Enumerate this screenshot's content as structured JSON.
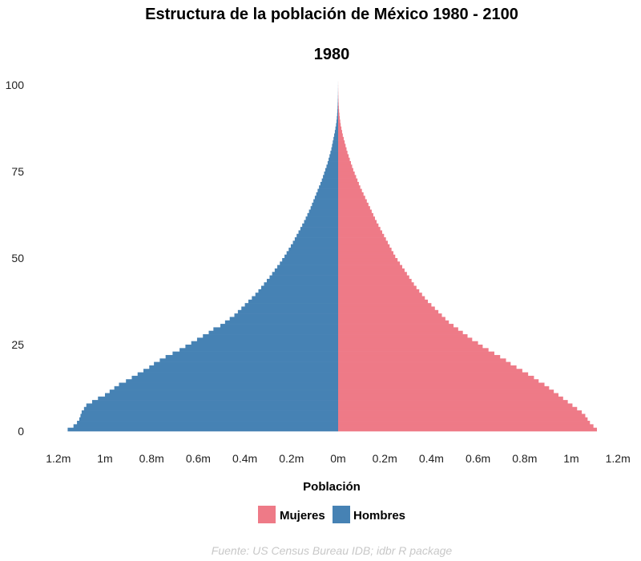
{
  "chart_data": {
    "type": "bar",
    "orientation": "horizontal-pyramid",
    "title": "Estructura de la población de México 1980 - 2100",
    "subtitle": "1980",
    "xlabel": "Población",
    "ylabel": "",
    "caption": "Fuente: US Census Bureau IDB; idbr R package",
    "xlim": [
      -1200000,
      1200000
    ],
    "ylim": [
      0,
      100
    ],
    "x_ticks": [
      -1200000,
      -1000000,
      -800000,
      -600000,
      -400000,
      -200000,
      0,
      200000,
      400000,
      600000,
      800000,
      1000000,
      1200000
    ],
    "x_tick_labels": [
      "1.2m",
      "1m",
      "0.8m",
      "0.6m",
      "0.4m",
      "0.2m",
      "0m",
      "0.2m",
      "0.4m",
      "0.6m",
      "0.8m",
      "1m",
      "1.2m"
    ],
    "y_ticks": [
      0,
      25,
      50,
      75,
      100
    ],
    "y_tick_labels": [
      "0",
      "25",
      "50",
      "75",
      "100"
    ],
    "grid": false,
    "legend_position": "bottom",
    "colors": {
      "Mujeres": "#ee7a87",
      "Hombres": "#4682b4"
    },
    "categories": [
      0,
      1,
      2,
      3,
      4,
      5,
      6,
      7,
      8,
      9,
      10,
      11,
      12,
      13,
      14,
      15,
      16,
      17,
      18,
      19,
      20,
      21,
      22,
      23,
      24,
      25,
      26,
      27,
      28,
      29,
      30,
      31,
      32,
      33,
      34,
      35,
      36,
      37,
      38,
      39,
      40,
      41,
      42,
      43,
      44,
      45,
      46,
      47,
      48,
      49,
      50,
      51,
      52,
      53,
      54,
      55,
      56,
      57,
      58,
      59,
      60,
      61,
      62,
      63,
      64,
      65,
      66,
      67,
      68,
      69,
      70,
      71,
      72,
      73,
      74,
      75,
      76,
      77,
      78,
      79,
      80,
      81,
      82,
      83,
      84,
      85,
      86,
      87,
      88,
      89,
      90,
      91,
      92,
      93,
      94,
      95,
      96,
      97,
      98,
      99,
      100
    ],
    "series": [
      {
        "name": "Mujeres",
        "values": [
          1110000,
          1095000,
          1080000,
          1070000,
          1060000,
          1045000,
          1025000,
          1005000,
          985000,
          965000,
          945000,
          925000,
          905000,
          885000,
          860000,
          840000,
          815000,
          790000,
          765000,
          740000,
          720000,
          695000,
          670000,
          645000,
          620000,
          600000,
          575000,
          555000,
          535000,
          515000,
          495000,
          475000,
          460000,
          445000,
          430000,
          415000,
          400000,
          385000,
          372000,
          360000,
          348000,
          336000,
          325000,
          315000,
          305000,
          295000,
          285000,
          275000,
          265000,
          255000,
          245000,
          237000,
          229000,
          221000,
          213000,
          205000,
          197000,
          189000,
          181000,
          173000,
          165000,
          158000,
          151000,
          144000,
          137000,
          130000,
          123000,
          116000,
          109000,
          102000,
          95000,
          89000,
          83000,
          77000,
          71000,
          65000,
          60000,
          55000,
          50000,
          45000,
          40000,
          36000,
          32000,
          28000,
          24000,
          20000,
          17000,
          14000,
          11000,
          9000,
          7000,
          5500,
          4000,
          3000,
          2200,
          1600,
          1100,
          800,
          500,
          300,
          200
        ]
      },
      {
        "name": "Hombres",
        "values": [
          1160000,
          1135000,
          1120000,
          1110000,
          1105000,
          1100000,
          1090000,
          1080000,
          1055000,
          1030000,
          1000000,
          980000,
          960000,
          940000,
          910000,
          885000,
          860000,
          835000,
          810000,
          790000,
          765000,
          740000,
          710000,
          680000,
          655000,
          630000,
          605000,
          580000,
          555000,
          535000,
          505000,
          485000,
          465000,
          445000,
          430000,
          415000,
          400000,
          385000,
          370000,
          355000,
          342000,
          330000,
          318000,
          306000,
          294000,
          283000,
          272000,
          261000,
          250000,
          240000,
          230000,
          221000,
          212000,
          203000,
          194000,
          186000,
          178000,
          170000,
          162000,
          154000,
          146000,
          139000,
          132000,
          125000,
          118000,
          112000,
          106000,
          100000,
          94000,
          88000,
          82000,
          76000,
          70000,
          65000,
          60000,
          55000,
          50000,
          45000,
          41000,
          37000,
          33000,
          29000,
          26000,
          23000,
          20000,
          17000,
          14000,
          11500,
          9000,
          7000,
          5500,
          4200,
          3200,
          2400,
          1800,
          1300,
          900,
          600,
          400,
          250,
          150
        ]
      }
    ]
  }
}
